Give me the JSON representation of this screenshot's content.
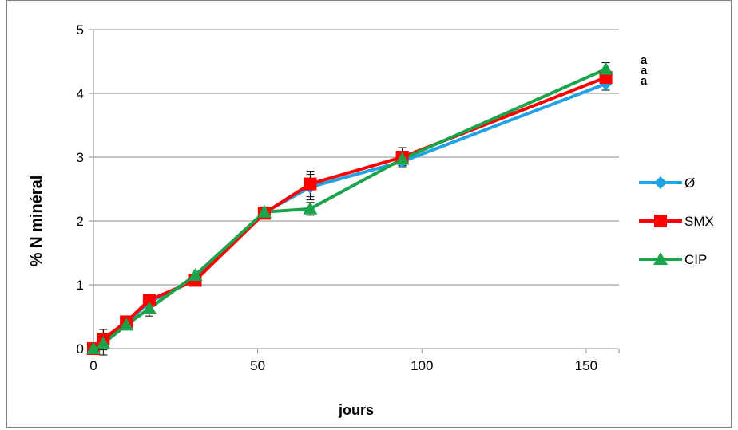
{
  "chart_data": {
    "type": "line",
    "title": "",
    "xlabel": "jours",
    "ylabel": "% N minéral",
    "xlim": [
      0,
      160
    ],
    "ylim": [
      0,
      5
    ],
    "xticks": [
      "0",
      "50",
      "100",
      "150"
    ],
    "yticks": [
      "0",
      "1",
      "2",
      "3",
      "4",
      "5"
    ],
    "grid": "horizontal",
    "legend_position": "right",
    "annotations": [
      "a",
      "a",
      "a"
    ],
    "series": [
      {
        "name": "Ø",
        "color": "#1fa3e6",
        "marker": "diamond",
        "x": [
          0,
          3,
          10,
          17,
          31,
          52,
          66,
          94,
          156
        ],
        "y": [
          0.0,
          0.1,
          0.4,
          0.73,
          1.08,
          2.13,
          2.53,
          2.93,
          4.15
        ],
        "err": [
          0.05,
          0.2,
          0.05,
          0.1,
          0.08,
          0.08,
          0.2,
          0.08,
          0.1
        ]
      },
      {
        "name": "SMX",
        "color": "#ff0000",
        "marker": "square",
        "x": [
          0,
          3,
          10,
          17,
          31,
          52,
          66,
          94,
          156
        ],
        "y": [
          0.0,
          0.15,
          0.42,
          0.76,
          1.07,
          2.12,
          2.58,
          3.0,
          4.25
        ],
        "err": [
          0.05,
          0.15,
          0.05,
          0.08,
          0.08,
          0.08,
          0.2,
          0.15,
          0.1
        ]
      },
      {
        "name": "CIP",
        "color": "#1aa34a",
        "marker": "triangle",
        "x": [
          0,
          3,
          10,
          17,
          31,
          52,
          66,
          94,
          156
        ],
        "y": [
          0.0,
          0.08,
          0.37,
          0.63,
          1.15,
          2.14,
          2.19,
          2.97,
          4.38
        ],
        "err": [
          0.05,
          0.1,
          0.05,
          0.12,
          0.08,
          0.08,
          0.1,
          0.1,
          0.1
        ]
      }
    ]
  }
}
